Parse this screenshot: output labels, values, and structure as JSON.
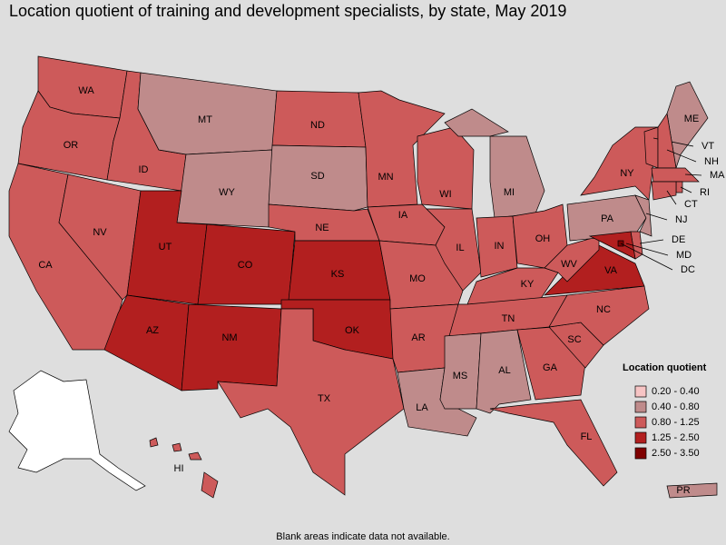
{
  "title": "Location quotient of training and development specialists, by state, May 2019",
  "legend_title": "Location quotient",
  "legend": [
    {
      "label": "0.20 - 0.40",
      "color": "#f7c4c4"
    },
    {
      "label": "0.40 - 0.80",
      "color": "#bf8b8b"
    },
    {
      "label": "0.80 - 1.25",
      "color": "#cd5a5a"
    },
    {
      "label": "1.25 - 2.50",
      "color": "#b21f1f"
    },
    {
      "label": "2.50 - 3.50",
      "color": "#7f0000"
    }
  ],
  "note": "Blank areas indicate data not available.",
  "states": [
    {
      "label": "WA",
      "class": 2
    },
    {
      "label": "OR",
      "class": 2
    },
    {
      "label": "CA",
      "class": 2
    },
    {
      "label": "NV",
      "class": 2
    },
    {
      "label": "ID",
      "class": 2
    },
    {
      "label": "MT",
      "class": 1
    },
    {
      "label": "WY",
      "class": 1
    },
    {
      "label": "UT",
      "class": 3
    },
    {
      "label": "CO",
      "class": 3
    },
    {
      "label": "AZ",
      "class": 3
    },
    {
      "label": "NM",
      "class": 3
    },
    {
      "label": "ND",
      "class": 2
    },
    {
      "label": "SD",
      "class": 1
    },
    {
      "label": "NE",
      "class": 2
    },
    {
      "label": "KS",
      "class": 3
    },
    {
      "label": "OK",
      "class": 3
    },
    {
      "label": "TX",
      "class": 2
    },
    {
      "label": "MN",
      "class": 2
    },
    {
      "label": "IA",
      "class": 2
    },
    {
      "label": "MO",
      "class": 2
    },
    {
      "label": "AR",
      "class": 2
    },
    {
      "label": "LA",
      "class": 1
    },
    {
      "label": "WI",
      "class": 2
    },
    {
      "label": "IL",
      "class": 2
    },
    {
      "label": "MI",
      "class": 1
    },
    {
      "label": "IN",
      "class": 2
    },
    {
      "label": "OH",
      "class": 2
    },
    {
      "label": "KY",
      "class": 2
    },
    {
      "label": "TN",
      "class": 2
    },
    {
      "label": "MS",
      "class": 1
    },
    {
      "label": "AL",
      "class": 1
    },
    {
      "label": "GA",
      "class": 2
    },
    {
      "label": "FL",
      "class": 2
    },
    {
      "label": "SC",
      "class": 2
    },
    {
      "label": "NC",
      "class": 2
    },
    {
      "label": "VA",
      "class": 3
    },
    {
      "label": "WV",
      "class": 2
    },
    {
      "label": "PA",
      "class": 1
    },
    {
      "label": "NY",
      "class": 2
    },
    {
      "label": "ME",
      "class": 1
    },
    {
      "label": "VT",
      "class": 2
    },
    {
      "label": "NH",
      "class": 2
    },
    {
      "label": "MA",
      "class": 2
    },
    {
      "label": "RI",
      "class": 2
    },
    {
      "label": "CT",
      "class": 2
    },
    {
      "label": "NJ",
      "class": 1
    },
    {
      "label": "DE",
      "class": 2
    },
    {
      "label": "MD",
      "class": 3
    },
    {
      "label": "DC",
      "class": 4
    },
    {
      "label": "HI",
      "class": 2
    },
    {
      "label": "PR",
      "class": 1
    }
  ]
}
